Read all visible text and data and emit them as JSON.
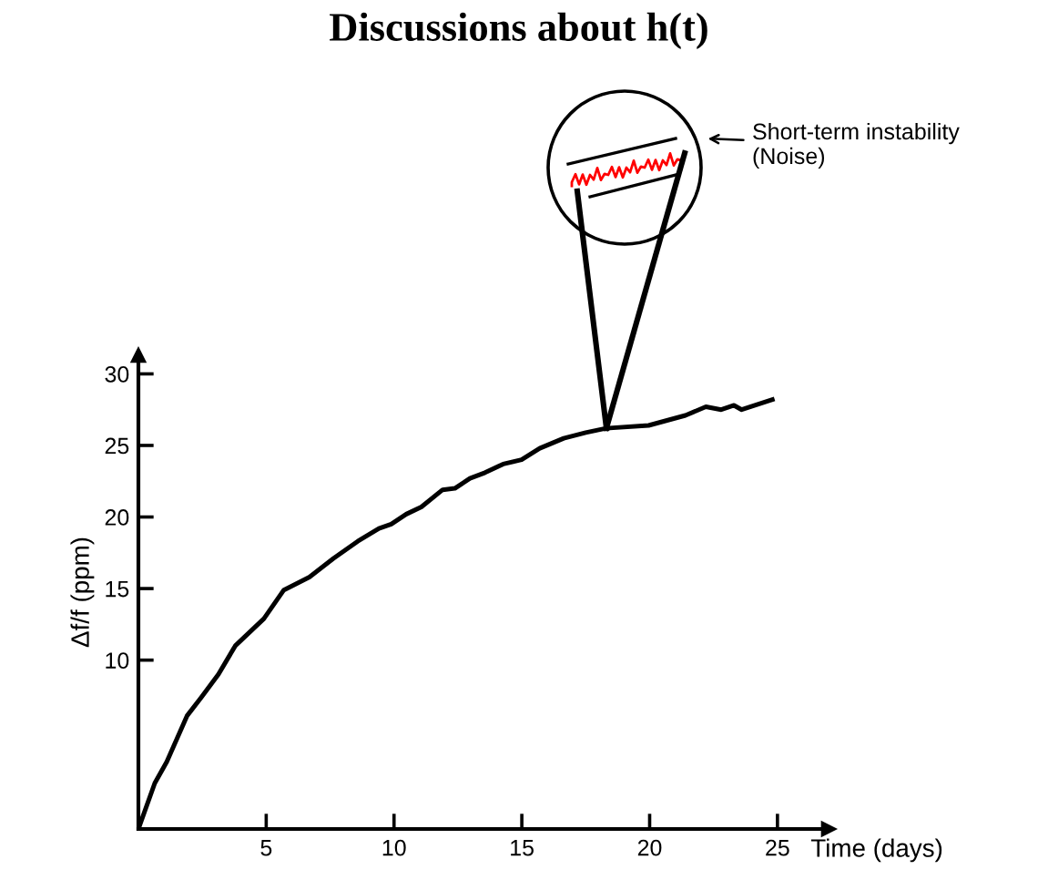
{
  "chart_data": {
    "type": "line",
    "title": "Discussions about h(t)",
    "xlabel": "Time (days)",
    "ylabel": "Δf/f (ppm)",
    "annotations": [
      "Short-term instability\n(Noise)"
    ],
    "series": [
      {
        "color": "#000000",
        "x": [
          0,
          0.64,
          1.11,
          1.9,
          2.42,
          3.13,
          3.79,
          4.91,
          5.69,
          6.69,
          7.63,
          8.58,
          9.41,
          9.89,
          10.48,
          11.07,
          11.9,
          12.38,
          12.97,
          13.56,
          14.27,
          14.99,
          15.7,
          16.64,
          17.5,
          18.3,
          19.96,
          21.4,
          22.2,
          22.8,
          23.3,
          23.6,
          24.8
        ],
        "values": [
          -1.8,
          1.4,
          2.9,
          6.1,
          7.3,
          9.0,
          11.0,
          12.9,
          14.9,
          15.8,
          17.1,
          18.3,
          19.2,
          19.5,
          20.2,
          20.7,
          21.9,
          22.0,
          22.7,
          23.1,
          23.7,
          24.0,
          24.8,
          25.5,
          25.9,
          26.2,
          26.4,
          27.1,
          27.7,
          27.5,
          27.8,
          27.5,
          28.2
        ]
      }
    ],
    "xlim": [
      0,
      27
    ],
    "ylim": [
      -1.8,
      31.3
    ],
    "xticks": [
      5,
      10,
      15,
      20,
      25
    ],
    "yticks": [
      10,
      15,
      20,
      25,
      30
    ],
    "grid": false,
    "legend": false,
    "marker": "none",
    "line_style": "solid"
  }
}
